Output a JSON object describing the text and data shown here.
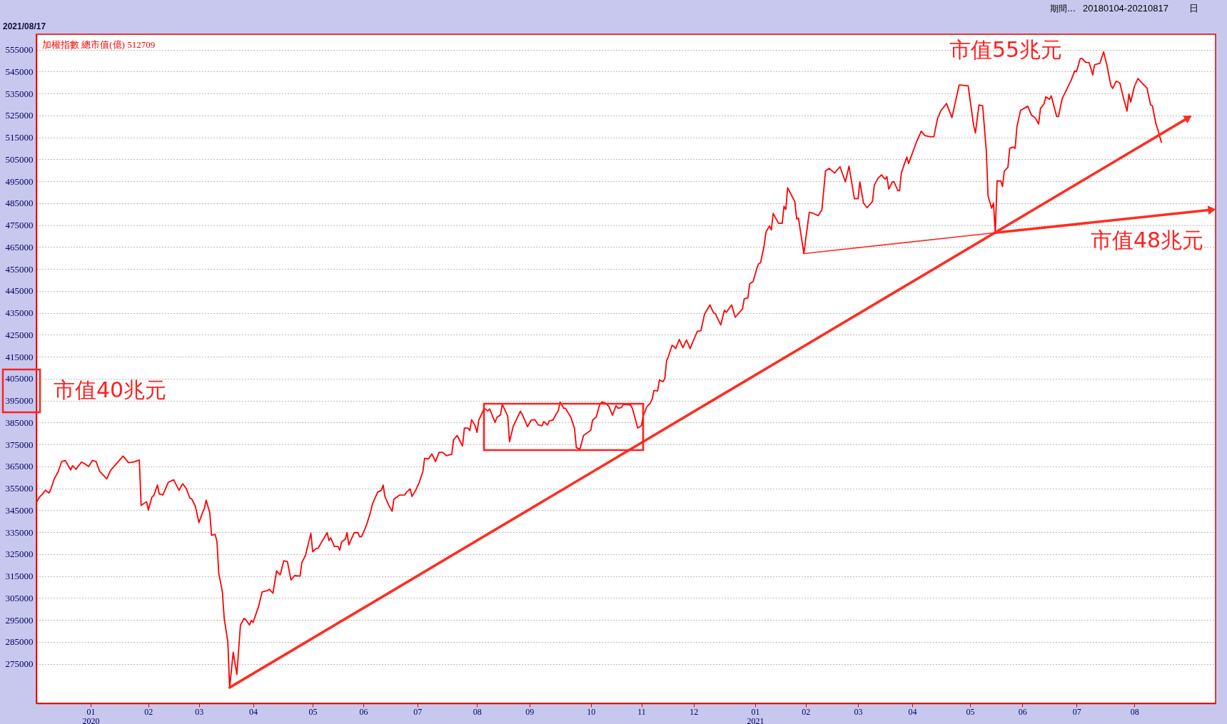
{
  "chart_data": {
    "type": "line",
    "title": "加權指數 總市值(億) 512709",
    "subtitle": "2021/08/17",
    "xlim": [
      "2019-12-03",
      "2021-09-16"
    ],
    "ylim": [
      257000,
      562000
    ],
    "xticks": [
      {
        "value": "2020-01-02",
        "label": "01\n2020"
      },
      {
        "value": "2020-02-03",
        "label": "02"
      },
      {
        "value": "2020-03-02",
        "label": "03"
      },
      {
        "value": "2020-04-01",
        "label": "04"
      },
      {
        "value": "2020-05-04",
        "label": "05"
      },
      {
        "value": "2020-06-01",
        "label": "06"
      },
      {
        "value": "2020-07-01",
        "label": "07"
      },
      {
        "value": "2020-08-03",
        "label": "08"
      },
      {
        "value": "2020-09-01",
        "label": "09"
      },
      {
        "value": "2020-10-05",
        "label": "10"
      },
      {
        "value": "2020-11-02",
        "label": "11"
      },
      {
        "value": "2020-12-01",
        "label": "12"
      },
      {
        "value": "2021-01-04",
        "label": "01\n2021"
      },
      {
        "value": "2021-02-01",
        "label": "02"
      },
      {
        "value": "2021-03-02",
        "label": "03"
      },
      {
        "value": "2021-04-01",
        "label": "04"
      },
      {
        "value": "2021-05-03",
        "label": "05"
      },
      {
        "value": "2021-06-01",
        "label": "06"
      },
      {
        "value": "2021-07-01",
        "label": "07"
      },
      {
        "value": "2021-08-02",
        "label": "08"
      }
    ],
    "yticks": [
      275000,
      285000,
      295000,
      305000,
      315000,
      325000,
      335000,
      345000,
      355000,
      365000,
      375000,
      385000,
      395000,
      405000,
      415000,
      425000,
      435000,
      445000,
      455000,
      465000,
      475000,
      485000,
      495000,
      505000,
      515000,
      525000,
      535000,
      545000,
      555000
    ],
    "grid": "y",
    "series": [
      {
        "color": "#ff0000",
        "x": [
          "2019-12-03",
          "2019-12-05",
          "2019-12-06",
          "2019-12-08",
          "2019-12-10",
          "2019-12-11",
          "2019-12-13",
          "2019-12-15",
          "2019-12-17",
          "2019-12-19",
          "2019-12-22",
          "2019-12-23",
          "2019-12-25",
          "2019-12-26",
          "2019-12-28",
          "2019-12-30",
          "2020-01-01",
          "2020-01-03",
          "2020-01-05",
          "2020-01-07",
          "2020-01-11",
          "2020-01-13",
          "2020-01-20",
          "2020-01-23",
          "2020-01-26",
          "2020-01-29",
          "2020-01-30",
          "2020-02-02",
          "2020-02-03",
          "2020-02-05",
          "2020-02-06",
          "2020-02-08",
          "2020-02-09",
          "2020-02-11",
          "2020-02-14",
          "2020-02-17",
          "2020-02-20",
          "2020-02-22",
          "2020-02-24",
          "2020-02-26",
          "2020-02-27",
          "2020-02-29",
          "2020-03-02",
          "2020-03-04",
          "2020-03-05",
          "2020-03-06",
          "2020-03-08",
          "2020-03-09",
          "2020-03-11",
          "2020-03-12",
          "2020-03-13",
          "2020-03-15",
          "2020-03-16",
          "2020-03-18",
          "2020-03-19",
          "2020-03-21",
          "2020-03-23",
          "2020-03-25",
          "2020-03-27",
          "2020-03-28",
          "2020-03-30",
          "2020-03-31",
          "2020-04-01",
          "2020-04-04",
          "2020-04-06",
          "2020-04-09",
          "2020-04-10",
          "2020-04-12",
          "2020-04-14",
          "2020-04-16",
          "2020-04-18",
          "2020-04-20",
          "2020-04-22",
          "2020-04-24",
          "2020-04-27",
          "2020-04-28",
          "2020-04-30",
          "2020-05-03",
          "2020-05-04",
          "2020-05-06",
          "2020-05-07",
          "2020-05-09",
          "2020-05-12",
          "2020-05-13",
          "2020-05-14",
          "2020-05-16",
          "2020-05-18",
          "2020-05-19",
          "2020-05-20",
          "2020-05-22",
          "2020-05-23",
          "2020-05-24",
          "2020-05-27",
          "2020-05-29",
          "2020-05-30",
          "2020-05-31",
          "2020-06-02",
          "2020-06-03",
          "2020-06-05",
          "2020-06-06",
          "2020-06-09",
          "2020-06-11",
          "2020-06-12",
          "2020-06-13",
          "2020-06-15",
          "2020-06-17",
          "2020-06-18",
          "2020-06-20",
          "2020-06-21",
          "2020-06-24",
          "2020-06-25",
          "2020-06-27",
          "2020-06-28",
          "2020-06-30",
          "2020-07-02",
          "2020-07-04",
          "2020-07-05",
          "2020-07-07",
          "2020-07-09",
          "2020-07-11",
          "2020-07-13",
          "2020-07-15",
          "2020-07-17",
          "2020-07-20",
          "2020-07-21",
          "2020-07-23",
          "2020-07-26",
          "2020-07-27",
          "2020-07-29",
          "2020-07-30",
          "2020-07-31",
          "2020-08-02",
          "2020-08-03",
          "2020-08-04",
          "2020-08-07",
          "2020-08-09",
          "2020-08-10",
          "2020-08-13",
          "2020-08-14",
          "2020-08-16",
          "2020-08-17",
          "2020-08-18",
          "2020-08-20",
          "2020-08-21",
          "2020-08-23",
          "2020-08-24",
          "2020-08-27",
          "2020-08-28",
          "2020-08-31",
          "2020-09-02",
          "2020-09-04",
          "2020-09-06",
          "2020-09-08",
          "2020-09-09",
          "2020-09-11",
          "2020-09-12",
          "2020-09-14",
          "2020-09-16",
          "2020-09-17",
          "2020-09-18",
          "2020-09-20",
          "2020-09-21",
          "2020-09-24",
          "2020-09-26",
          "2020-09-27",
          "2020-09-29",
          "2020-10-01",
          "2020-10-05",
          "2020-10-06",
          "2020-10-08",
          "2020-10-10",
          "2020-10-11",
          "2020-10-13",
          "2020-10-15",
          "2020-10-17",
          "2020-10-19",
          "2020-10-20",
          "2020-10-22",
          "2020-10-23",
          "2020-10-27",
          "2020-10-28",
          "2020-10-30",
          "2020-10-31",
          "2020-11-02",
          "2020-11-03",
          "2020-11-05",
          "2020-11-07",
          "2020-11-08",
          "2020-11-09",
          "2020-11-11",
          "2020-11-12",
          "2020-11-14",
          "2020-11-15",
          "2020-11-16",
          "2020-11-17",
          "2020-11-19",
          "2020-11-20",
          "2020-11-21",
          "2020-11-23",
          "2020-11-25",
          "2020-11-27",
          "2020-11-29",
          "2020-12-02",
          "2020-12-03",
          "2020-12-05",
          "2020-12-07",
          "2020-12-10",
          "2020-12-12",
          "2020-12-13",
          "2020-12-16",
          "2020-12-18",
          "2020-12-19",
          "2020-12-22",
          "2020-12-24",
          "2020-12-28",
          "2020-12-29",
          "2020-12-31",
          "2021-01-01",
          "2021-01-03",
          "2021-01-05",
          "2021-01-06",
          "2021-01-07",
          "2021-01-09",
          "2021-01-10",
          "2021-01-12",
          "2021-01-13",
          "2021-01-14",
          "2021-01-17",
          "2021-01-19",
          "2021-01-20",
          "2021-01-21",
          "2021-01-22",
          "2021-01-26",
          "2021-01-27",
          "2021-01-28",
          "2021-01-31",
          "2021-02-01",
          "2021-02-03",
          "2021-02-05",
          "2021-02-08",
          "2021-02-10",
          "2021-02-12",
          "2021-02-14",
          "2021-02-17",
          "2021-02-20",
          "2021-02-23",
          "2021-02-25",
          "2021-02-28",
          "2021-03-02",
          "2021-03-03",
          "2021-03-05",
          "2021-03-07",
          "2021-03-10",
          "2021-03-11",
          "2021-03-13",
          "2021-03-15",
          "2021-03-17",
          "2021-03-18",
          "2021-03-19",
          "2021-03-21",
          "2021-03-22",
          "2021-03-24",
          "2021-03-25",
          "2021-03-26",
          "2021-03-29",
          "2021-03-30",
          "2021-04-03",
          "2021-04-06",
          "2021-04-08",
          "2021-04-11",
          "2021-04-13",
          "2021-04-15",
          "2021-04-17",
          "2021-04-20",
          "2021-04-23",
          "2021-04-27",
          "2021-05-02",
          "2021-05-05",
          "2021-05-06",
          "2021-05-08",
          "2021-05-10",
          "2021-05-12",
          "2021-05-13",
          "2021-05-15",
          "2021-05-16",
          "2021-05-17",
          "2021-05-18",
          "2021-05-20",
          "2021-05-21",
          "2021-05-22",
          "2021-05-24",
          "2021-05-25",
          "2021-05-27",
          "2021-05-28",
          "2021-05-29",
          "2021-05-31",
          "2021-06-04",
          "2021-06-06",
          "2021-06-08",
          "2021-06-10",
          "2021-06-11",
          "2021-06-13",
          "2021-06-14",
          "2021-06-16",
          "2021-06-17",
          "2021-06-20",
          "2021-06-21",
          "2021-06-23",
          "2021-06-28",
          "2021-06-30",
          "2021-07-01",
          "2021-07-03",
          "2021-07-04",
          "2021-07-06",
          "2021-07-08",
          "2021-07-10",
          "2021-07-11",
          "2021-07-14",
          "2021-07-16",
          "2021-07-18",
          "2021-07-20",
          "2021-07-21",
          "2021-07-23",
          "2021-07-25",
          "2021-07-27",
          "2021-07-29",
          "2021-07-30",
          "2021-07-31",
          "2021-08-02",
          "2021-08-04",
          "2021-08-07",
          "2021-08-09",
          "2021-08-11",
          "2021-08-12",
          "2021-08-14",
          "2021-08-15",
          "2021-08-17"
        ],
        "values": [
          348700,
          351300,
          352000,
          354100,
          352900,
          354700,
          359500,
          362500,
          367300,
          367700,
          363400,
          365300,
          363700,
          364900,
          367000,
          366100,
          364900,
          367700,
          367300,
          362800,
          359300,
          363100,
          369700,
          366700,
          367000,
          367900,
          347200,
          348900,
          345100,
          351100,
          351700,
          356500,
          352500,
          352000,
          357700,
          358900,
          354100,
          357100,
          354900,
          350500,
          350200,
          346900,
          339400,
          343900,
          345700,
          349600,
          343900,
          333600,
          334000,
          330600,
          316200,
          307800,
          295700,
          285000,
          264200,
          280300,
          270200,
          292700,
          295700,
          295100,
          292700,
          294800,
          293900,
          301100,
          307800,
          308400,
          309000,
          307200,
          317400,
          315600,
          322000,
          321600,
          313200,
          315200,
          315000,
          321200,
          324400,
          334500,
          326100,
          327600,
          327700,
          330600,
          334800,
          331200,
          332400,
          328500,
          328500,
          326800,
          330600,
          331800,
          334800,
          329200,
          334800,
          334800,
          333000,
          333000,
          336600,
          338800,
          344100,
          347700,
          353300,
          354100,
          356500,
          351300,
          347500,
          344500,
          350100,
          351300,
          351900,
          352000,
          353300,
          354700,
          351300,
          354100,
          357700,
          362600,
          368700,
          368300,
          370700,
          367200,
          371400,
          371400,
          369900,
          370500,
          377100,
          379100,
          374300,
          382500,
          382500,
          381300,
          386300,
          383500,
          380500,
          386100,
          391500,
          390300,
          391200,
          385100,
          387300,
          388500,
          393300,
          391500,
          387900,
          376200,
          383100,
          384900,
          390100,
          388800,
          383100,
          386100,
          386300,
          383900,
          383500,
          385500,
          383900,
          385700,
          386100,
          389100,
          390300,
          394300,
          391500,
          391500,
          387300,
          382300,
          373500,
          372900,
          379100,
          381500,
          386100,
          387500,
          393300,
          394300,
          393900,
          392400,
          388300,
          392700,
          391500,
          391800,
          393300,
          393000,
          391500,
          385500,
          382500,
          383500,
          387900,
          392100,
          393900,
          395700,
          399600,
          399400,
          404400,
          403600,
          405100,
          413300,
          415100,
          420200,
          419700,
          418700,
          422900,
          419100,
          422600,
          418700,
          424700,
          426500,
          426900,
          434400,
          438600,
          435000,
          434600,
          429500,
          436200,
          435200,
          438600,
          433000,
          436800,
          441400,
          441800,
          448200,
          449400,
          455400,
          457400,
          457800,
          465600,
          471800,
          474600,
          472800,
          480300,
          475800,
          475800,
          483600,
          482100,
          492000,
          485700,
          477800,
          478200,
          462000,
          468400,
          480800,
          480400,
          479300,
          482000,
          499700,
          500900,
          498700,
          501600,
          494700,
          501900,
          487000,
          487000,
          494700,
          485100,
          482900,
          485800,
          493200,
          496300,
          497900,
          495900,
          497100,
          491400,
          494700,
          494700,
          490700,
          490700,
          498800,
          506000,
          503100,
          512100,
          517800,
          515800,
          515300,
          515300,
          523600,
          527300,
          530400,
          524000,
          538900,
          538500,
          520500,
          517000,
          529800,
          529400,
          509300,
          488300,
          482700,
          485100,
          471500,
          495100,
          495100,
          492600,
          499700,
          501300,
          510000,
          510600,
          510000,
          519900,
          527300,
          529200,
          525200,
          524000,
          521100,
          528000,
          530400,
          533500,
          532300,
          533900,
          524500,
          524500,
          532500,
          541000,
          545300,
          545000,
          550800,
          551000,
          549300,
          549000,
          543500,
          548100,
          548800,
          554000,
          547200,
          538700,
          537300,
          540600,
          539700,
          532900,
          527000,
          534800,
          531100,
          538100,
          541800,
          539100,
          537500,
          529800,
          529400,
          521100,
          518600,
          512709
        ]
      },
      {
        "color": "#ff2d20",
        "x": [
          "2020-03-19",
          "2021-09-01"
        ],
        "values": [
          264200,
          524000
        ]
      },
      {
        "color": "#ff2d20",
        "x": [
          "2021-01-31",
          "2021-05-17"
        ],
        "values": [
          462000,
          471500
        ]
      },
      {
        "color": "#ff2d20",
        "x": [
          "2021-05-17",
          "2021-09-14"
        ],
        "values": [
          471500,
          482000
        ]
      }
    ],
    "annotations": [
      "市值40兆元",
      "市值55兆元",
      "市值48兆元",
      "期間...",
      "20180104-20210817",
      "日"
    ]
  }
}
